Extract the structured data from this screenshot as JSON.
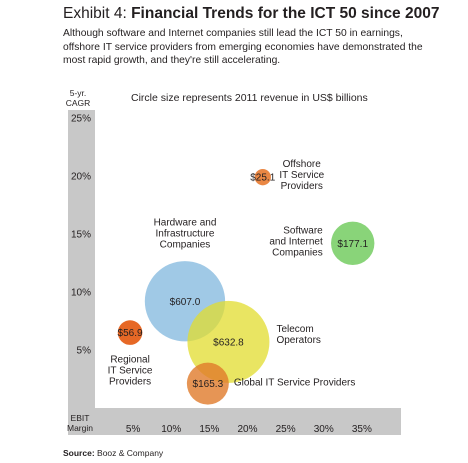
{
  "header": {
    "exhibit": "Exhibit 4:",
    "title": "Financial Trends for the ICT 50 since 2007",
    "subtitle": "Although software and Internet companies still lead the ICT 50 in earnings, offshore IT service providers from emerging economies have demonstrated the most rapid growth, and they're still accelerating."
  },
  "source": {
    "label": "Source:",
    "text": "Booz & Company"
  },
  "colors": {
    "axis_band": "#c8c8c8",
    "text": "#231f20"
  },
  "chart_data": {
    "type": "scatter",
    "subtype": "bubble",
    "annotation": "Circle size represents 2011 revenue in US$ billions",
    "ylabel": "5-yr. CAGR",
    "xlabel": "EBIT Margin",
    "xlim": [
      0,
      40
    ],
    "ylim": [
      0,
      25
    ],
    "x_ticks": [
      "5%",
      "10%",
      "15%",
      "20%",
      "25%",
      "30%",
      "35%"
    ],
    "y_ticks": [
      "5%",
      "10%",
      "15%",
      "20%",
      "25%"
    ],
    "x_tick_values": [
      5,
      10,
      15,
      20,
      25,
      30,
      35
    ],
    "y_tick_values": [
      5,
      10,
      15,
      20,
      25
    ],
    "grid": false,
    "series": [
      {
        "name": "Hardware and Infrastructure Companies",
        "x": 11.8,
        "y": 9.2,
        "revenue": 607.0,
        "value_label": "$607.0",
        "color": "#8fbfe2",
        "opacity": 0.85
      },
      {
        "name": "Telecom Operators",
        "x": 17.5,
        "y": 5.7,
        "revenue": 632.8,
        "value_label": "$632.8",
        "color": "#e2dc2e",
        "opacity": 0.75
      },
      {
        "name": "Global IT Service Providers",
        "x": 14.8,
        "y": 2.1,
        "revenue": 165.3,
        "value_label": "$165.3",
        "color": "#e07a2a",
        "opacity": 0.8
      },
      {
        "name": "Regional IT Service Providers",
        "x": 4.6,
        "y": 6.5,
        "revenue": 56.9,
        "value_label": "$56.9",
        "color": "#e5601a",
        "opacity": 0.95
      },
      {
        "name": "Software and Internet Companies",
        "x": 33.8,
        "y": 14.2,
        "revenue": 177.1,
        "value_label": "$177.1",
        "color": "#7ccf6a",
        "opacity": 0.9
      },
      {
        "name": "Offshore IT Service Providers",
        "x": 22.0,
        "y": 19.9,
        "revenue": 25.1,
        "value_label": "$25.1",
        "color": "#e87a30",
        "opacity": 0.9
      }
    ]
  }
}
